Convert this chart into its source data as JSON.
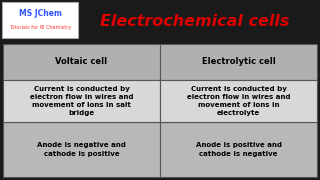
{
  "title": "Electrochemical cells",
  "title_color": "#dd0000",
  "title_fontsize": 11.5,
  "background_color": "#1a1a1a",
  "table_bg_header": "#b0b0b0",
  "table_bg_row1": "#d8d8d8",
  "table_bg_row2": "#b8b8b8",
  "table_text_color": "#000000",
  "table_border_color": "#555555",
  "headers": [
    "Voltaic cell",
    "Electrolytic cell"
  ],
  "rows": [
    [
      "Current is conducted by\nelectron flow in wires and\nmovement of ions in salt\nbridge",
      "Current is conducted by\nelectron flow in wires and\nmovement of ions in\nelectrolyte"
    ],
    [
      "Anode is negative and\ncathode is positive",
      "Anode is positive and\ncathode is negative"
    ]
  ],
  "watermark_text": "MS JChem",
  "watermark_sub": "Tutorials for IB Chemistry",
  "watermark_color": "#3355ff",
  "watermark_sub_color": "#ff3333",
  "wm_bg": "#ffffff"
}
